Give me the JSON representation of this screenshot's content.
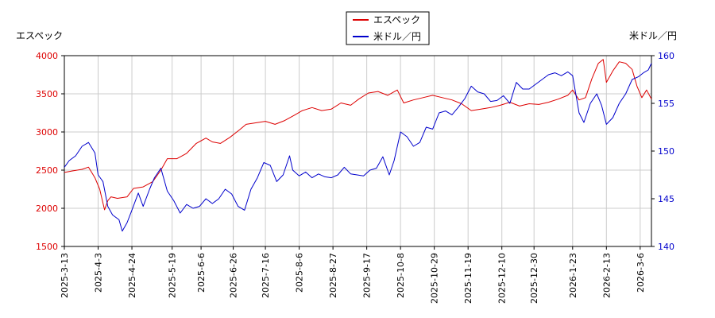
{
  "chart_data": {
    "type": "line",
    "left_axis_label": "エスペック",
    "right_axis_label": "米ドル／円",
    "left_ylim": [
      1500,
      4000
    ],
    "right_ylim": [
      140,
      160
    ],
    "left_yticks": [
      1500,
      2000,
      2500,
      3000,
      3500,
      4000
    ],
    "right_yticks": [
      140,
      145,
      150,
      155,
      160
    ],
    "x_ticks": [
      "2025-3-13",
      "2025-4-3",
      "2025-4-24",
      "2025-5-19",
      "2025-6-6",
      "2025-6-26",
      "2025-7-16",
      "2025-8-6",
      "2025-8-27",
      "2025-9-17",
      "2025-10-8",
      "2025-10-29",
      "2025-11-19",
      "2025-12-10",
      "2025-12-30",
      "2026-1-23",
      "2026-2-13",
      "2026-3-6"
    ],
    "x_start": "2025-3-13",
    "x_end": "2026-3-13",
    "grid": true,
    "legend_position": "top-center",
    "series": [
      {
        "name": "エスペック",
        "axis": "left",
        "color": "#dd0000",
        "points": [
          [
            "2025-3-13",
            2470
          ],
          [
            "2025-3-18",
            2490
          ],
          [
            "2025-3-24",
            2510
          ],
          [
            "2025-3-28",
            2540
          ],
          [
            "2025-4-1",
            2400
          ],
          [
            "2025-4-4",
            2250
          ],
          [
            "2025-4-7",
            1980
          ],
          [
            "2025-4-9",
            2100
          ],
          [
            "2025-4-11",
            2150
          ],
          [
            "2025-4-15",
            2130
          ],
          [
            "2025-4-21",
            2150
          ],
          [
            "2025-4-25",
            2260
          ],
          [
            "2025-5-1",
            2280
          ],
          [
            "2025-5-7",
            2350
          ],
          [
            "2025-5-12",
            2500
          ],
          [
            "2025-5-16",
            2650
          ],
          [
            "2025-5-22",
            2650
          ],
          [
            "2025-5-28",
            2720
          ],
          [
            "2025-6-3",
            2850
          ],
          [
            "2025-6-9",
            2920
          ],
          [
            "2025-6-13",
            2870
          ],
          [
            "2025-6-18",
            2850
          ],
          [
            "2025-6-24",
            2930
          ],
          [
            "2025-6-30",
            3030
          ],
          [
            "2025-7-4",
            3100
          ],
          [
            "2025-7-10",
            3120
          ],
          [
            "2025-7-16",
            3140
          ],
          [
            "2025-7-22",
            3100
          ],
          [
            "2025-7-28",
            3150
          ],
          [
            "2025-8-3",
            3220
          ],
          [
            "2025-8-8",
            3280
          ],
          [
            "2025-8-14",
            3320
          ],
          [
            "2025-8-20",
            3280
          ],
          [
            "2025-8-26",
            3300
          ],
          [
            "2025-9-1",
            3380
          ],
          [
            "2025-9-7",
            3350
          ],
          [
            "2025-9-12",
            3430
          ],
          [
            "2025-9-18",
            3510
          ],
          [
            "2025-9-24",
            3530
          ],
          [
            "2025-9-30",
            3480
          ],
          [
            "2025-10-6",
            3550
          ],
          [
            "2025-10-10",
            3380
          ],
          [
            "2025-10-16",
            3420
          ],
          [
            "2025-10-22",
            3450
          ],
          [
            "2025-10-28",
            3480
          ],
          [
            "2025-11-3",
            3450
          ],
          [
            "2025-11-9",
            3420
          ],
          [
            "2025-11-15",
            3370
          ],
          [
            "2025-11-21",
            3280
          ],
          [
            "2025-11-27",
            3300
          ],
          [
            "2025-12-3",
            3320
          ],
          [
            "2025-12-9",
            3350
          ],
          [
            "2025-12-15",
            3390
          ],
          [
            "2025-12-21",
            3340
          ],
          [
            "2025-12-27",
            3370
          ],
          [
            "2026-1-2",
            3360
          ],
          [
            "2026-1-8",
            3390
          ],
          [
            "2026-1-14",
            3430
          ],
          [
            "2026-1-20",
            3480
          ],
          [
            "2026-1-23",
            3550
          ],
          [
            "2026-1-27",
            3420
          ],
          [
            "2026-1-31",
            3450
          ],
          [
            "2026-2-4",
            3700
          ],
          [
            "2026-2-8",
            3900
          ],
          [
            "2026-2-11",
            3950
          ],
          [
            "2026-2-13",
            3650
          ],
          [
            "2026-2-17",
            3800
          ],
          [
            "2026-2-21",
            3920
          ],
          [
            "2026-2-25",
            3900
          ],
          [
            "2026-3-1",
            3820
          ],
          [
            "2026-3-4",
            3600
          ],
          [
            "2026-3-7",
            3450
          ],
          [
            "2026-3-10",
            3550
          ],
          [
            "2026-3-13",
            3430
          ]
        ]
      },
      {
        "name": "米ドル／円",
        "axis": "right",
        "color": "#0000cc",
        "points": [
          [
            "2025-3-13",
            148.3
          ],
          [
            "2025-3-16",
            149.0
          ],
          [
            "2025-3-20",
            149.5
          ],
          [
            "2025-3-24",
            150.5
          ],
          [
            "2025-3-28",
            150.9
          ],
          [
            "2025-4-1",
            149.8
          ],
          [
            "2025-4-3",
            147.5
          ],
          [
            "2025-4-6",
            146.8
          ],
          [
            "2025-4-9",
            144.2
          ],
          [
            "2025-4-12",
            143.3
          ],
          [
            "2025-4-16",
            142.8
          ],
          [
            "2025-4-18",
            141.6
          ],
          [
            "2025-4-21",
            142.5
          ],
          [
            "2025-4-24",
            143.8
          ],
          [
            "2025-4-28",
            145.6
          ],
          [
            "2025-5-1",
            144.2
          ],
          [
            "2025-5-5",
            146.0
          ],
          [
            "2025-5-8",
            147.2
          ],
          [
            "2025-5-12",
            148.2
          ],
          [
            "2025-5-16",
            145.8
          ],
          [
            "2025-5-20",
            144.8
          ],
          [
            "2025-5-24",
            143.5
          ],
          [
            "2025-5-28",
            144.4
          ],
          [
            "2025-6-1",
            144.0
          ],
          [
            "2025-6-5",
            144.2
          ],
          [
            "2025-6-9",
            145.0
          ],
          [
            "2025-6-13",
            144.5
          ],
          [
            "2025-6-17",
            145.0
          ],
          [
            "2025-6-21",
            146.0
          ],
          [
            "2025-6-25",
            145.5
          ],
          [
            "2025-6-29",
            144.2
          ],
          [
            "2025-7-3",
            143.8
          ],
          [
            "2025-7-7",
            146.0
          ],
          [
            "2025-7-11",
            147.2
          ],
          [
            "2025-7-15",
            148.8
          ],
          [
            "2025-7-19",
            148.5
          ],
          [
            "2025-7-23",
            146.8
          ],
          [
            "2025-7-27",
            147.5
          ],
          [
            "2025-7-31",
            149.5
          ],
          [
            "2025-8-2",
            148.0
          ],
          [
            "2025-8-6",
            147.4
          ],
          [
            "2025-8-10",
            147.8
          ],
          [
            "2025-8-14",
            147.2
          ],
          [
            "2025-8-18",
            147.6
          ],
          [
            "2025-8-22",
            147.3
          ],
          [
            "2025-8-26",
            147.2
          ],
          [
            "2025-8-30",
            147.5
          ],
          [
            "2025-9-3",
            148.3
          ],
          [
            "2025-9-7",
            147.6
          ],
          [
            "2025-9-11",
            147.5
          ],
          [
            "2025-9-15",
            147.4
          ],
          [
            "2025-9-19",
            148.0
          ],
          [
            "2025-9-23",
            148.2
          ],
          [
            "2025-9-27",
            149.4
          ],
          [
            "2025-10-1",
            147.5
          ],
          [
            "2025-10-4",
            149.0
          ],
          [
            "2025-10-8",
            152.0
          ],
          [
            "2025-10-12",
            151.5
          ],
          [
            "2025-10-16",
            150.5
          ],
          [
            "2025-10-20",
            150.9
          ],
          [
            "2025-10-24",
            152.5
          ],
          [
            "2025-10-28",
            152.3
          ],
          [
            "2025-11-1",
            154.0
          ],
          [
            "2025-11-5",
            154.2
          ],
          [
            "2025-11-9",
            153.8
          ],
          [
            "2025-11-13",
            154.6
          ],
          [
            "2025-11-17",
            155.5
          ],
          [
            "2025-11-21",
            156.8
          ],
          [
            "2025-11-25",
            156.2
          ],
          [
            "2025-11-29",
            156.0
          ],
          [
            "2025-12-3",
            155.2
          ],
          [
            "2025-12-7",
            155.3
          ],
          [
            "2025-12-11",
            155.8
          ],
          [
            "2025-12-15",
            155.0
          ],
          [
            "2025-12-19",
            157.2
          ],
          [
            "2025-12-23",
            156.5
          ],
          [
            "2025-12-27",
            156.5
          ],
          [
            "2025-12-31",
            157.0
          ],
          [
            "2026-1-4",
            157.5
          ],
          [
            "2026-1-8",
            158.0
          ],
          [
            "2026-1-12",
            158.2
          ],
          [
            "2026-1-16",
            157.9
          ],
          [
            "2026-1-20",
            158.3
          ],
          [
            "2026-1-23",
            157.9
          ],
          [
            "2026-1-27",
            154.0
          ],
          [
            "2026-1-30",
            153.0
          ],
          [
            "2026-2-3",
            155.0
          ],
          [
            "2026-2-7",
            156.0
          ],
          [
            "2026-2-10",
            154.8
          ],
          [
            "2026-2-13",
            152.8
          ],
          [
            "2026-2-17",
            153.5
          ],
          [
            "2026-2-21",
            155.0
          ],
          [
            "2026-2-25",
            156.0
          ],
          [
            "2026-3-1",
            157.5
          ],
          [
            "2026-3-5",
            157.8
          ],
          [
            "2026-3-8",
            158.2
          ],
          [
            "2026-3-11",
            158.5
          ],
          [
            "2026-3-13",
            159.2
          ]
        ]
      }
    ]
  },
  "colors": {
    "left_axis": "#dd0000",
    "right_axis": "#0000cc",
    "grid": "#cccccc",
    "legend_border": "#000000"
  }
}
